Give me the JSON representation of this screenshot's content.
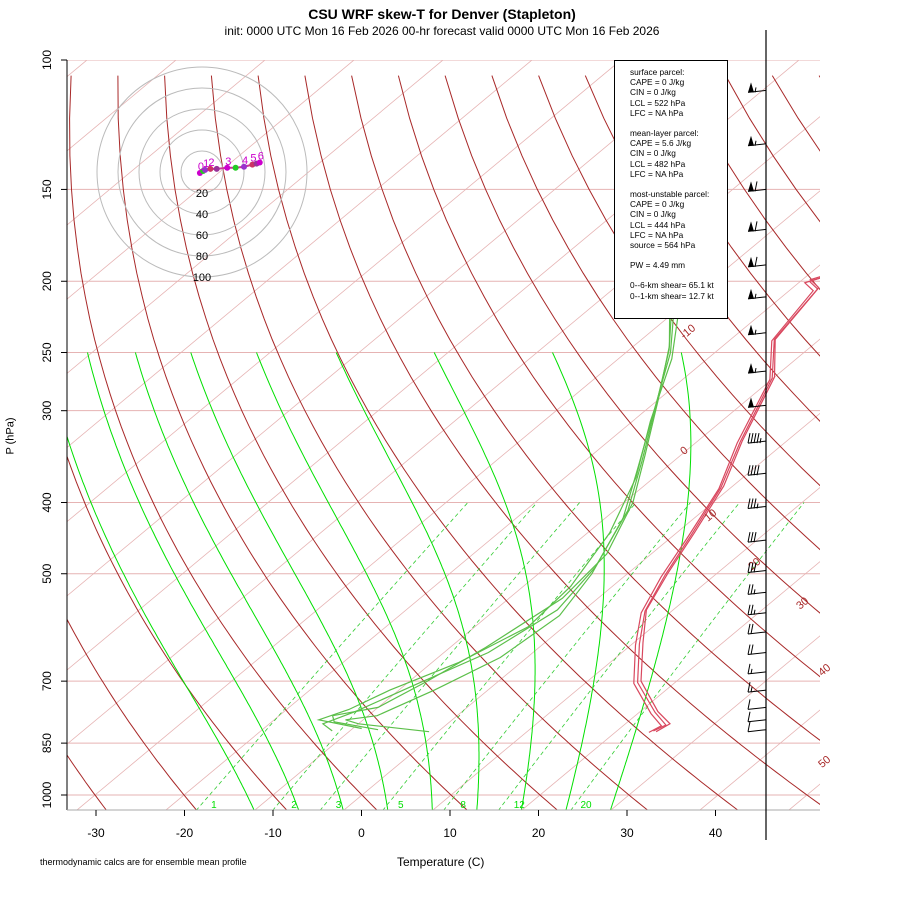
{
  "header": {
    "title": "CSU WRF skew-T for Denver (Stapleton)",
    "subtitle": "init: 0000 UTC Mon 16 Feb 2026    00-hr forecast valid 0000 UTC Mon 16 Feb 2026"
  },
  "footnote": "thermodynamic calcs are for ensemble mean profile",
  "stats": {
    "surface": [
      "surface parcel:",
      "CAPE = 0 J/kg",
      "CIN = 0 J/kg",
      "LCL = 522 hPa",
      "LFC = NA hPa"
    ],
    "mean_layer": [
      "mean-layer parcel:",
      "CAPE = 5.6 J/kg",
      "CIN = 0 J/kg",
      "LCL = 482 hPa",
      "LFC = NA hPa"
    ],
    "most_unstable": [
      "most-unstable parcel:",
      "CAPE = 0 J/kg",
      "CIN = 0 J/kg",
      "LCL = 444 hPa",
      "LFC = NA hPa",
      "source = 564 hPa"
    ],
    "pw": "PW =  4.49 mm",
    "shear": [
      "0--6-km shear= 65.1 kt",
      "0--1-km shear= 12.7 kt"
    ]
  },
  "colors": {
    "temperature": "#d9485f",
    "dewpoint": "#5cbf4a",
    "dry_adiabat": "#a82828",
    "moist_adiabat": "#00e000",
    "mixing_ratio": "#33cc33",
    "isobar": "#e6b3b3",
    "isotherm": "#e6b3b3",
    "hodograph_ring": "#bbbbbb",
    "wind_barb": "#000000"
  },
  "chart_data": {
    "type": "line",
    "xlabel": "Temperature (C)",
    "ylabel": "P (hPa)",
    "xlim": [
      -33,
      45
    ],
    "ylim": [
      1050,
      100
    ],
    "y_scale": "log",
    "x_ticks": [
      -30,
      -20,
      -10,
      0,
      10,
      20,
      30,
      40
    ],
    "pressure_ticks": [
      100,
      150,
      200,
      250,
      300,
      400,
      500,
      700,
      850,
      1000
    ],
    "isotherm_labels": [
      {
        "text": "-10",
        "p": 240
      },
      {
        "text": "0",
        "p": 345
      },
      {
        "text": "10",
        "p": 425
      },
      {
        "text": "20",
        "p": 495
      },
      {
        "text": "30",
        "p": 560
      },
      {
        "text": "40",
        "p": 690
      },
      {
        "text": "50",
        "p": 920
      }
    ],
    "mixing_ratio_labels": [
      {
        "text": "1",
        "t": -16.5
      },
      {
        "text": "2",
        "t": -7.5
      },
      {
        "text": "3",
        "t": -2.5
      },
      {
        "text": "5",
        "t": 4.5
      },
      {
        "text": "8",
        "t": 11.5
      },
      {
        "text": "12",
        "t": 17.5
      },
      {
        "text": "20",
        "t": 25
      }
    ],
    "series": [
      {
        "type": "temperature",
        "points": [
          [
            24.5,
            820
          ],
          [
            25,
            800
          ],
          [
            22,
            770
          ],
          [
            16,
            700
          ],
          [
            11,
            620
          ],
          [
            7,
            560
          ],
          [
            4.5,
            500
          ],
          [
            2,
            440
          ],
          [
            -1,
            380
          ],
          [
            -5,
            330
          ],
          [
            -10,
            270
          ],
          [
            -15,
            240
          ],
          [
            -17,
            205
          ],
          [
            -19,
            200
          ],
          [
            -9,
            175
          ],
          [
            -8,
            165
          ],
          [
            -4,
            155
          ],
          [
            -2,
            147
          ],
          [
            0,
            137
          ],
          [
            4,
            120
          ]
        ]
      },
      {
        "type": "temperature",
        "points": [
          [
            23.8,
            822
          ],
          [
            24.3,
            805
          ],
          [
            21.5,
            775
          ],
          [
            15.5,
            705
          ],
          [
            10.5,
            625
          ],
          [
            6.8,
            565
          ],
          [
            4.2,
            505
          ],
          [
            1.8,
            445
          ],
          [
            -1.2,
            383
          ],
          [
            -5.3,
            332
          ],
          [
            -10.2,
            272
          ],
          [
            -15.2,
            241
          ],
          [
            -17.3,
            206
          ],
          [
            -19.3,
            201
          ],
          [
            -10,
            177
          ],
          [
            -9,
            168
          ],
          [
            -5,
            157
          ],
          [
            -2,
            148
          ],
          [
            -1,
            139
          ],
          [
            1,
            120
          ]
        ]
      },
      {
        "type": "temperature",
        "points": [
          [
            24.1,
            818
          ],
          [
            24.7,
            803
          ],
          [
            21.8,
            772
          ],
          [
            15.8,
            703
          ],
          [
            10.8,
            623
          ],
          [
            7,
            562
          ],
          [
            4.4,
            502
          ],
          [
            1.9,
            442
          ],
          [
            -1.1,
            382
          ],
          [
            -5.1,
            331
          ],
          [
            -10.1,
            271
          ],
          [
            -15.1,
            240
          ],
          [
            -17.1,
            204
          ],
          [
            -19.1,
            199
          ],
          [
            -8.5,
            173
          ],
          [
            -7.5,
            163
          ],
          [
            -3.5,
            153
          ],
          [
            -1.5,
            146
          ],
          [
            -0.5,
            138
          ],
          [
            2,
            120
          ]
        ]
      },
      {
        "type": "dewpoint",
        "points": [
          [
            -1,
            820
          ],
          [
            -10,
            800
          ],
          [
            -12,
            790
          ],
          [
            -9,
            780
          ],
          [
            -6,
            720
          ],
          [
            -3,
            650
          ],
          [
            -2,
            570
          ],
          [
            -4,
            500
          ],
          [
            -8,
            420
          ],
          [
            -13,
            360
          ],
          [
            -19,
            300
          ],
          [
            -25,
            250
          ],
          [
            -32,
            210
          ],
          [
            -36,
            190
          ]
        ]
      },
      {
        "type": "dewpoint",
        "points": [
          [
            -7,
            815
          ],
          [
            -13,
            795
          ],
          [
            -14,
            780
          ],
          [
            -10,
            760
          ],
          [
            -8,
            700
          ],
          [
            -6,
            630
          ],
          [
            -4,
            540
          ],
          [
            -5,
            470
          ],
          [
            -9,
            400
          ],
          [
            -14,
            345
          ],
          [
            -20,
            290
          ],
          [
            -26,
            245
          ],
          [
            -33,
            208
          ],
          [
            -37,
            190
          ]
        ]
      },
      {
        "type": "dewpoint",
        "points": [
          [
            -12,
            818
          ],
          [
            -14,
            800
          ],
          [
            -12,
            770
          ],
          [
            -9,
            710
          ],
          [
            -5,
            640
          ],
          [
            -3,
            560
          ],
          [
            -4.5,
            490
          ],
          [
            -8.5,
            410
          ],
          [
            -13.5,
            352
          ],
          [
            -19.5,
            295
          ],
          [
            -25.5,
            248
          ],
          [
            -32.5,
            209
          ],
          [
            -36.5,
            190
          ]
        ]
      },
      {
        "type": "dewpoint",
        "points": [
          [
            -9,
            812
          ],
          [
            -15,
            790
          ],
          [
            -13,
            765
          ],
          [
            -11,
            720
          ],
          [
            -7,
            660
          ],
          [
            -4,
            590
          ],
          [
            -4.7,
            520
          ],
          [
            -7.5,
            440
          ],
          [
            -12,
            370
          ],
          [
            -18,
            310
          ],
          [
            -24,
            255
          ],
          [
            -31,
            212
          ],
          [
            -35.5,
            190
          ]
        ]
      }
    ],
    "hodograph": {
      "rings": [
        20,
        40,
        60,
        80,
        100
      ],
      "hour_labels": [
        "0",
        "1",
        "2",
        "3",
        "4",
        "5",
        "6"
      ],
      "points": [
        [
          -2,
          -1
        ],
        [
          1,
          1
        ],
        [
          3,
          2
        ],
        [
          8,
          3
        ],
        [
          14,
          3
        ],
        [
          24,
          4
        ],
        [
          32,
          4
        ],
        [
          40,
          5
        ],
        [
          48,
          7
        ],
        [
          52,
          8
        ],
        [
          55,
          9
        ]
      ]
    },
    "wind_barbs": [
      {
        "p": 110,
        "kt": 55
      },
      {
        "p": 130,
        "kt": 55
      },
      {
        "p": 150,
        "kt": 60
      },
      {
        "p": 170,
        "kt": 60
      },
      {
        "p": 190,
        "kt": 60
      },
      {
        "p": 210,
        "kt": 55
      },
      {
        "p": 235,
        "kt": 55
      },
      {
        "p": 265,
        "kt": 55
      },
      {
        "p": 295,
        "kt": 50
      },
      {
        "p": 330,
        "kt": 45
      },
      {
        "p": 365,
        "kt": 40
      },
      {
        "p": 405,
        "kt": 35
      },
      {
        "p": 450,
        "kt": 30
      },
      {
        "p": 495,
        "kt": 30
      },
      {
        "p": 530,
        "kt": 25
      },
      {
        "p": 565,
        "kt": 25
      },
      {
        "p": 600,
        "kt": 20
      },
      {
        "p": 640,
        "kt": 20
      },
      {
        "p": 680,
        "kt": 15
      },
      {
        "p": 720,
        "kt": 15
      },
      {
        "p": 760,
        "kt": 10
      },
      {
        "p": 790,
        "kt": 10
      },
      {
        "p": 815,
        "kt": 10
      }
    ]
  }
}
